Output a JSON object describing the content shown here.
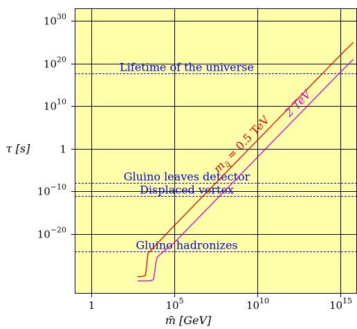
{
  "chart_data": {
    "type": "line",
    "title": "",
    "xlabel": "m̃ [GeV]",
    "ylabel": "τ [s]",
    "x_scale": "log",
    "y_scale": "log",
    "xlim": [
      0.1,
      1e+16
    ],
    "ylim": [
      1e-34,
      1e+33
    ],
    "grid": true,
    "background": "#FFFFAA",
    "x_ticks": [
      {
        "value": 1,
        "mant": "1",
        "exp": ""
      },
      {
        "value": 100000.0,
        "mant": "10",
        "exp": "5"
      },
      {
        "value": 10000000000.0,
        "mant": "10",
        "exp": "10"
      },
      {
        "value": 1000000000000000.0,
        "mant": "10",
        "exp": "15"
      }
    ],
    "y_ticks": [
      {
        "value": 1e+30,
        "mant": "10",
        "exp": "30"
      },
      {
        "value": 1e+20,
        "mant": "10",
        "exp": "20"
      },
      {
        "value": 10000000000.0,
        "mant": "10",
        "exp": "10"
      },
      {
        "value": 1,
        "mant": "1",
        "exp": ""
      },
      {
        "value": 1e-10,
        "mant": "10",
        "exp": "−10"
      },
      {
        "value": 1e-20,
        "mant": "10",
        "exp": "−20"
      }
    ],
    "hlines": [
      {
        "y": 4.3e+17,
        "text": "Lifetime of the universe",
        "color": "#0000CC"
      },
      {
        "y": 1e-08,
        "text": "Gluino leaves detector",
        "color": "#0000CC"
      },
      {
        "y": 1e-11,
        "text": "Displaced vertex",
        "color": "#0000CC"
      },
      {
        "y": 1e-24,
        "text": "Gluino hadronizes",
        "color": "#0000CC"
      }
    ],
    "series": [
      {
        "name": "m_q̃ = 0.5 TeV",
        "label_main": "m",
        "label_sub": "q̃",
        "label_rest": " = 0.5 TeV",
        "color": "#DD0000",
        "x": [
          600,
          1200,
          1800,
          2100,
          2300,
          2600,
          3500,
          100000.0,
          10000000000.0,
          1000000000000000.0,
          6000000000000000.0
        ],
        "y": [
          1e-30,
          1e-30,
          2e-30,
          1e-28,
          1e-26,
          3e-25,
          1e-24,
          1e-18,
          100.0,
          1e+22,
          1e+25
        ]
      },
      {
        "name": "2 TeV",
        "label_main": "2 TeV",
        "label_sub": "",
        "label_rest": "",
        "color": "#CC00CC",
        "x": [
          600,
          3500,
          5500,
          6500,
          7500,
          9000,
          12000,
          100000.0,
          10000000000.0,
          1000000000000000.0,
          6000000000000000.0
        ],
        "y": [
          1e-31,
          1e-31,
          2e-31,
          1e-29,
          1e-27,
          3e-26,
          1e-25,
          1e-22,
          0.01,
          1e+18,
          1e+21
        ]
      }
    ]
  }
}
